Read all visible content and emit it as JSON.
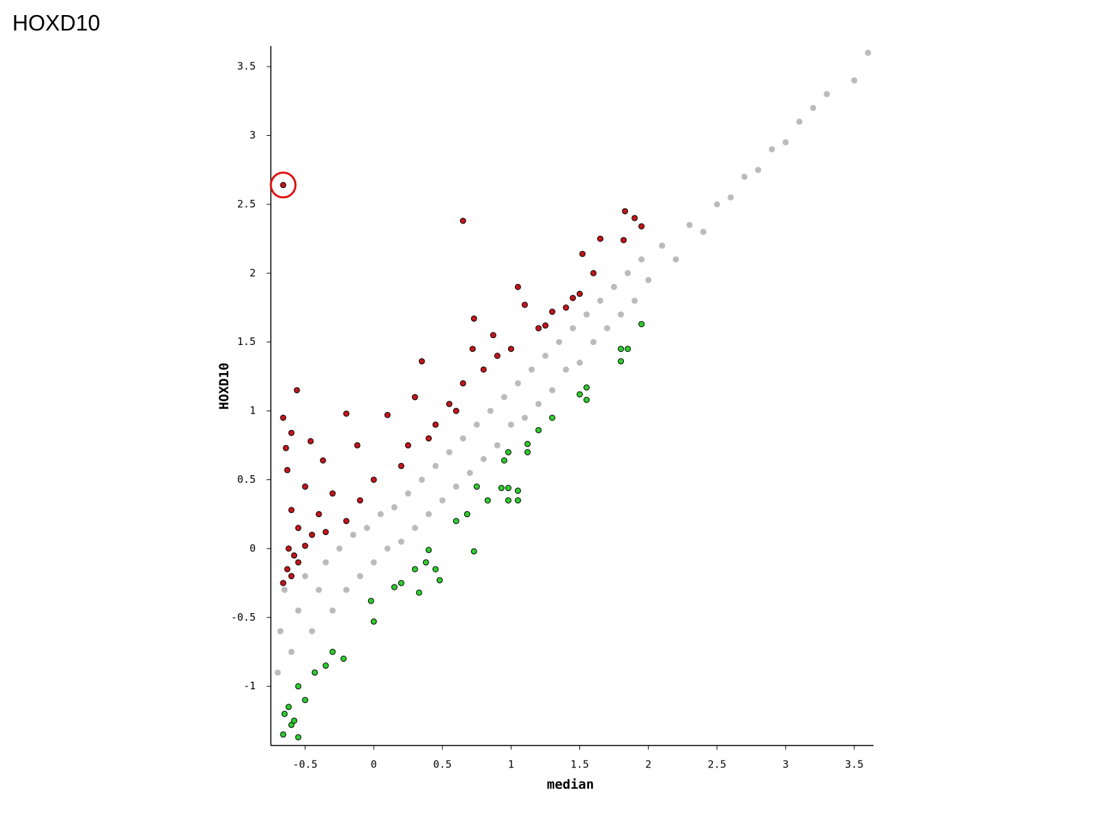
{
  "chart_data": {
    "type": "scatter",
    "title": "HOXD10",
    "xlabel": "median",
    "ylabel": "HOXD10",
    "xlim": [
      -0.75,
      3.64
    ],
    "ylim": [
      -1.43,
      3.65
    ],
    "xticks": [
      -0.5,
      0,
      0.5,
      1,
      1.5,
      2,
      2.5,
      3,
      3.5
    ],
    "yticks": [
      -1,
      -0.5,
      0,
      0.5,
      1,
      1.5,
      2,
      2.5,
      3,
      3.5
    ],
    "series": [
      {
        "color": "#bbbbbb",
        "x": [
          -0.7,
          -0.68,
          -0.65,
          -0.6,
          -0.55,
          -0.5,
          -0.45,
          -0.4,
          -0.35,
          -0.3,
          -0.25,
          -0.2,
          -0.15,
          -0.1,
          -0.05,
          0,
          0.05,
          0.1,
          0.15,
          0.2,
          0.25,
          0.3,
          0.35,
          0.4,
          0.45,
          0.5,
          0.55,
          0.6,
          0.65,
          0.7,
          0.75,
          0.8,
          0.85,
          0.9,
          0.95,
          1.0,
          1.05,
          1.1,
          1.15,
          1.2,
          1.25,
          1.3,
          1.35,
          1.4,
          1.45,
          1.5,
          1.55,
          1.6,
          1.65,
          1.7,
          1.75,
          1.8,
          1.85,
          1.9,
          1.95,
          2.0,
          2.1,
          2.2,
          2.3,
          2.4,
          2.5,
          2.6,
          2.7,
          2.8,
          2.9,
          3.0,
          3.1,
          3.2,
          3.3,
          3.5,
          3.6
        ],
        "y": [
          -0.9,
          -0.6,
          -0.3,
          -0.75,
          -0.45,
          -0.2,
          -0.6,
          -0.3,
          -0.1,
          -0.45,
          0.0,
          -0.3,
          0.1,
          -0.2,
          0.15,
          -0.1,
          0.25,
          0.0,
          0.3,
          0.05,
          0.4,
          0.15,
          0.5,
          0.25,
          0.6,
          0.35,
          0.7,
          0.45,
          0.8,
          0.55,
          0.9,
          0.65,
          1.0,
          0.75,
          1.1,
          0.9,
          1.2,
          0.95,
          1.3,
          1.05,
          1.4,
          1.15,
          1.5,
          1.3,
          1.6,
          1.35,
          1.7,
          1.5,
          1.8,
          1.6,
          1.9,
          1.7,
          2.0,
          1.8,
          2.1,
          1.95,
          2.2,
          2.1,
          2.35,
          2.3,
          2.5,
          2.55,
          2.7,
          2.75,
          2.9,
          2.95,
          3.1,
          3.2,
          3.3,
          3.4,
          3.6
        ]
      },
      {
        "color": "#c0171c",
        "x": [
          -0.66,
          0.65,
          1.83,
          1.9,
          1.95,
          1.65,
          1.82,
          1.52,
          1.6,
          1.5,
          1.45,
          1.05,
          1.4,
          1.1,
          1.3,
          0.73,
          1.2,
          0.87,
          0.72,
          0.9,
          0.35,
          0.8,
          0.65,
          -0.56,
          0.3,
          0.55,
          -0.2,
          0.1,
          -0.66,
          0.45,
          -0.6,
          -0.46,
          -0.12,
          0.25,
          -0.64,
          -0.37,
          0.2,
          -0.63,
          -0.5,
          0.0,
          -0.3,
          -0.6,
          -0.1,
          -0.4,
          -0.55,
          -0.62,
          -0.58,
          -0.63,
          -0.55,
          -0.5,
          -0.66,
          -0.6,
          -0.45,
          -0.35,
          -0.2,
          0.4,
          0.6,
          1.0,
          1.25
        ],
        "y": [
          2.64,
          2.38,
          2.45,
          2.4,
          2.34,
          2.25,
          2.24,
          2.14,
          2.0,
          1.85,
          1.82,
          1.9,
          1.75,
          1.77,
          1.72,
          1.67,
          1.6,
          1.55,
          1.45,
          1.4,
          1.36,
          1.3,
          1.2,
          1.15,
          1.1,
          1.05,
          0.98,
          0.97,
          0.95,
          0.9,
          0.84,
          0.78,
          0.75,
          0.75,
          0.73,
          0.64,
          0.6,
          0.57,
          0.45,
          0.5,
          0.4,
          0.28,
          0.35,
          0.25,
          0.15,
          0.0,
          -0.05,
          -0.15,
          -0.1,
          0.02,
          -0.25,
          -0.2,
          0.1,
          0.12,
          0.2,
          0.8,
          1.0,
          1.45,
          1.62
        ]
      },
      {
        "color": "#2ecc2e",
        "x": [
          1.95,
          1.8,
          1.85,
          1.8,
          1.55,
          1.5,
          1.55,
          1.3,
          1.2,
          1.12,
          1.12,
          0.98,
          0.95,
          0.93,
          0.98,
          1.05,
          0.98,
          1.05,
          0.83,
          0.75,
          0.68,
          0.6,
          0.73,
          0.4,
          0.38,
          0.48,
          0.45,
          0.3,
          0.2,
          0.15,
          0.33,
          -0.02,
          0.0,
          -0.3,
          -0.22,
          -0.35,
          -0.43,
          -0.55,
          -0.5,
          -0.62,
          -0.65,
          -0.6,
          -0.66,
          -0.55,
          -0.58
        ],
        "y": [
          1.63,
          1.45,
          1.45,
          1.36,
          1.17,
          1.12,
          1.08,
          0.95,
          0.86,
          0.76,
          0.7,
          0.7,
          0.64,
          0.44,
          0.44,
          0.42,
          0.35,
          0.35,
          0.35,
          0.45,
          0.25,
          0.2,
          -0.02,
          -0.01,
          -0.1,
          -0.23,
          -0.15,
          -0.15,
          -0.25,
          -0.28,
          -0.32,
          -0.38,
          -0.53,
          -0.75,
          -0.8,
          -0.85,
          -0.9,
          -1.0,
          -1.1,
          -1.15,
          -1.2,
          -1.28,
          -1.35,
          -1.37,
          -1.25
        ]
      }
    ]
  }
}
